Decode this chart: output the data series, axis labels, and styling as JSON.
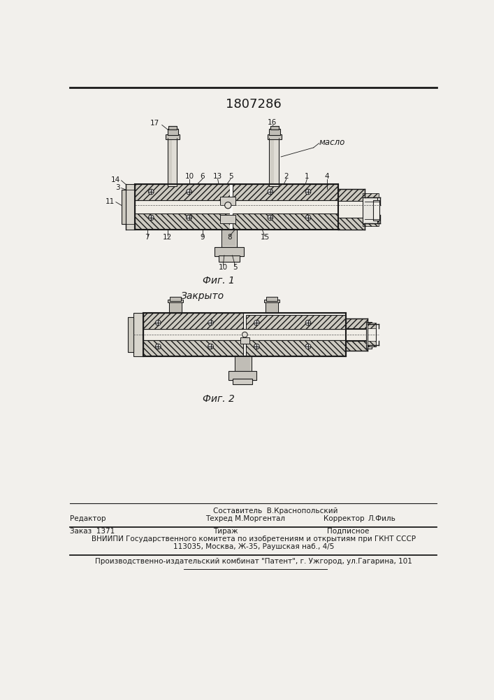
{
  "patent_number": "1807286",
  "page_bg": "#f2f0ec",
  "fig1_caption": "Фиг. 1",
  "fig2_caption": "Фиг. 2",
  "fig2_label": "Закрыто",
  "oil_label": "масло",
  "line_color": "#1a1a1a",
  "hatch_color": "#333333",
  "fill_light": "#d8d4cc",
  "fill_white": "#f8f7f4",
  "fill_dark": "#aaaaaa",
  "footer_sestavitel": "Составитель  В.Краснопольский",
  "footer_redaktor": "Редактор",
  "footer_tehred": "Техред М.Моргентал",
  "footer_korrektor": "Корректор",
  "footer_fil": "Л.Филь",
  "footer_zakaz": "Заказ  1371",
  "footer_tirazh": "Тираж",
  "footer_podpisnoe": "Подписное",
  "footer_vniipи": "ВНИИПИ Государственного комитета по изобретениям и открытиям при ГКНТ СССР",
  "footer_addr": "113035, Москва, Ж-35, Раушская наб., 4/5",
  "footer_patent": "Производственно-издательский комбинат \"Патент\", г. Ужгород, ул.Гагарина, 101"
}
